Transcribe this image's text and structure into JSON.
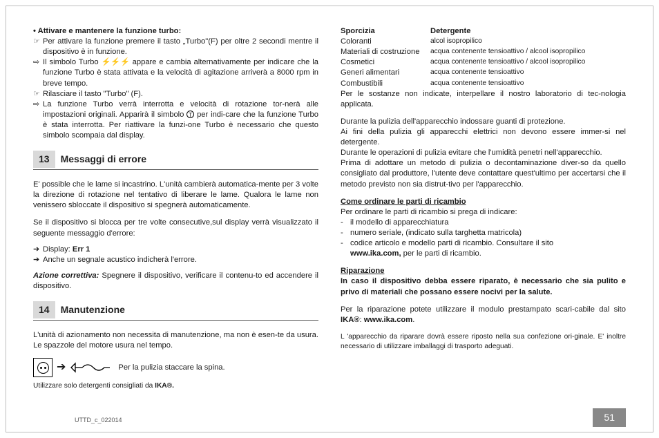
{
  "left": {
    "h1": "• Attivare e mantenere la funzione turbo:",
    "b1": {
      "m": "☞",
      "t": "Per attivare la funzione premere il tasto „Turbo\"(F) per oltre 2 secondi mentre il dispositivo è in funzione."
    },
    "b2": {
      "m": "⇨",
      "t1": "Il simbolo Turbo ",
      "sym": "⚡⚡⚡",
      "t2": " appare e cambia alternativamente per indicare che la funzione Turbo è stata attivata e la velocità di agitazione arriverà a 8000 rpm in breve tempo."
    },
    "b3": {
      "m": "☞",
      "t": "Rilasciare il tasto \"Turbo\" (F)."
    },
    "b4": {
      "m": "⇨",
      "t1": "La funzione Turbo verrà interrotta e velocità di rotazione tor-nerà alle impostazioni originali. Apparirà il simbolo ",
      "t2": " per indi-care che la funzione Turbo è stata interrotta. Per riattivare la funzi-one Turbo è necessario che questo simbolo scompaia dal display."
    },
    "sec13_num": "13",
    "sec13_title": "Messaggi di errore",
    "p13a": "E' possible che le lame si incastrino. L'unità cambierà automatica-mente per 3 volte la direzione di rotazione nel tentativo di liberare le lame. Qualora le lame non venissero sbloccate il dispositivo si spegnerà automaticamente.",
    "p13b": "Se il dispositivo si blocca per tre volte consecutive,sul display verrà visualizzato il seguente messaggio d'errore:",
    "d1": {
      "m": "➔",
      "t1": "Display: ",
      "t2": "Err 1"
    },
    "d2": {
      "m": "➔",
      "t": "Anche un segnale acustico indicherà l'errore."
    },
    "ac_label": "Azione correttiva:",
    "ac_text": " Spegnere il dispositivo, verificare il contenu-to ed  accendere il dispositivo.",
    "sec14_num": "14",
    "sec14_title": "Manutenzione",
    "p14a": "L'unità di azionamento non necessita di manutenzione, ma non è esen-te da usura. Le spazzole del motore usura nel tempo.",
    "plug_caption": "Per la pulizia staccare la spina.",
    "p14b_1": "Utilizzare solo detergenti consigliati da ",
    "p14b_2": "IKA®."
  },
  "right": {
    "th1": "Sporcizia",
    "th2": "Detergente",
    "rows": [
      {
        "a": "Coloranti",
        "b": "alcol isopropilico"
      },
      {
        "a": "Materiali di costruzione",
        "b": "acqua contenente tensioattivo / alcool isopropilico"
      },
      {
        "a": "Cosmetici",
        "b": "acqua contenente tensioattivo / alcool isopropilico"
      },
      {
        "a": "Generi alimentari",
        "b": "acqua contenente tensioattivo"
      },
      {
        "a": "Combustibili",
        "b": "acqua contenente tensioattivo"
      }
    ],
    "p1": "Per le sostanze non indicate, interpellare il nostro laboratorio di tec-nologia applicata.",
    "p2": "Durante la pulizia dell'apparecchio indossare guanti di protezione.",
    "p3": "Ai fini della pulizia gli apparecchi elettrici non devono essere immer-si nel detergente.",
    "p4": "Durante le operazioni di pulizia evitare che l'umidità penetri nell'apparecchio.",
    "p5": "Prima di adottare un metodo di pulizia o decontaminazione diver-so da quello consigliato dal produttore, l'utente deve contattare quest'ultimo per accertarsi che il metodo previsto non sia distrut-tivo per l'apparecchio.",
    "h_order": "Come ordinare le parti di ricambio",
    "order1": "Per ordinare le parti di ricambio si prega di indicare:",
    "ol": [
      "il modello di apparecchiatura",
      "numero seriale, (indicato sulla targhetta matricola)",
      "codice articolo e modello parti di ricambio. Consultare il sito"
    ],
    "order_site": "www.ika.com,",
    "order_tail": " per le parti di ricambio.",
    "h_rep": "Riparazione",
    "rep1": "In caso il dispositivo debba essere riparato, è necessario che sia pulito e privo di materiali che possano essere nocivi per la salute.",
    "rep2a": "Per la riparazione potete utilizzare il modulo prestampato scari-cabile dal sito ",
    "rep2b": "IKA®",
    "rep2c": ": ",
    "rep2d": "www.ika.com",
    "rep2e": ".",
    "rep3": "L 'apparecchio da riparare dovrà essere riposto nella sua confezione ori-ginale. E' inoltre necessario di utilizzare imballaggi di trasporto adeguati."
  },
  "footer": "UTTD_c_022014",
  "page": "51"
}
